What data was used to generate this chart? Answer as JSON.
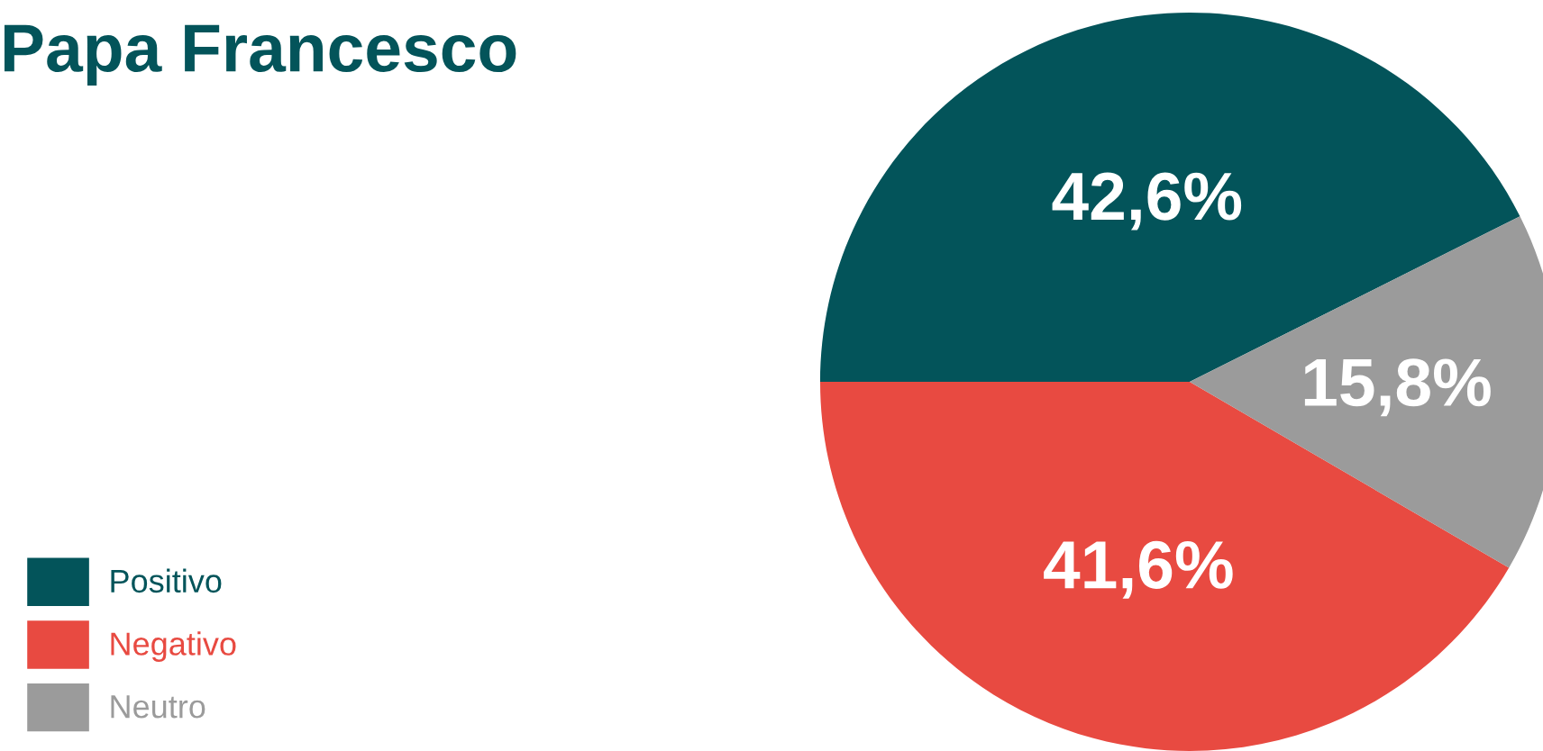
{
  "chart_data": {
    "type": "pie",
    "title": "Papa Francesco",
    "categories": [
      "Positivo",
      "Negativo",
      "Neutro"
    ],
    "values": [
      42.6,
      41.6,
      15.8
    ],
    "colors": [
      "#03545a",
      "#e84a41",
      "#9b9b9b"
    ],
    "value_labels": [
      "42,6%",
      "41,6%",
      "15,8%"
    ],
    "legend": "bottom left"
  }
}
